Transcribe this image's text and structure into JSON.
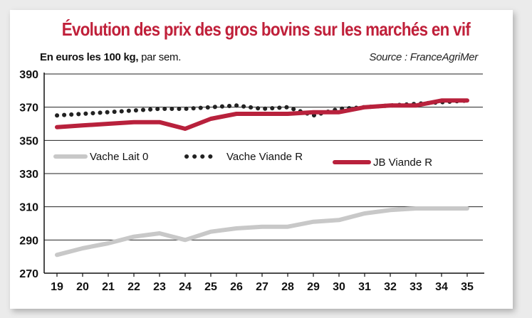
{
  "header": {
    "title": "Évolution des prix des gros bovins sur les marchés en vif",
    "unit_bold": "En euros les 100 kg,",
    "unit_rest": " par sem.",
    "source": "Source : FranceAgriMer"
  },
  "chart_data": {
    "type": "line",
    "title": "Évolution des prix des gros bovins sur les marchés en vif",
    "ylabel": "En euros les 100 kg, par sem.",
    "xlabel": "",
    "x": [
      19,
      20,
      21,
      22,
      23,
      24,
      25,
      26,
      27,
      28,
      29,
      30,
      31,
      32,
      33,
      34,
      35
    ],
    "ylim": [
      270,
      390
    ],
    "yticks": [
      270,
      290,
      310,
      330,
      350,
      370,
      390
    ],
    "grid": "horizontal",
    "legend": "center-left",
    "series": [
      {
        "name": "Vache Lait 0",
        "style": "solid",
        "color": "#c8c8c8",
        "values": [
          281,
          285,
          288,
          292,
          294,
          290,
          295,
          297,
          298,
          298,
          301,
          302,
          306,
          308,
          309,
          309,
          309
        ]
      },
      {
        "name": "Vache Viande R",
        "style": "dotted",
        "color": "#222222",
        "values": [
          365,
          366,
          367,
          368,
          369,
          369,
          370,
          371,
          369,
          370,
          365,
          369,
          370,
          371,
          372,
          373,
          374
        ]
      },
      {
        "name": "JB Viande R",
        "style": "solid",
        "color": "#b8213c",
        "values": [
          358,
          359,
          360,
          361,
          361,
          357,
          363,
          366,
          366,
          366,
          367,
          367,
          370,
          371,
          371,
          374,
          374
        ]
      }
    ]
  }
}
